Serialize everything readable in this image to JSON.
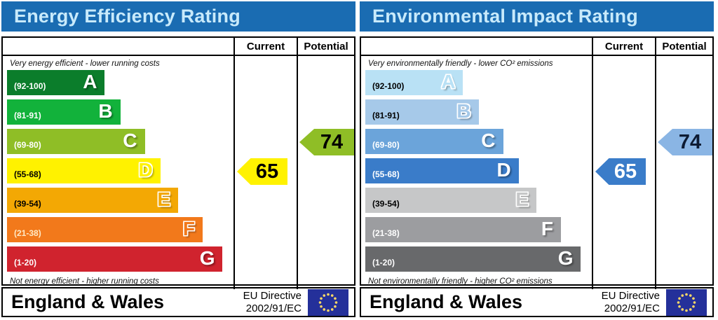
{
  "theme": {
    "header_bg": "#1a6cb2",
    "header_text": "#c8eafb",
    "border": "#000000",
    "eu_flag_bg": "#24309a",
    "eu_flag_stars": "#ffd966"
  },
  "panels": [
    {
      "title": "Energy Efficiency Rating",
      "columns": {
        "current": "Current",
        "potential": "Potential"
      },
      "top_caption": "Very energy efficient - lower running costs",
      "bottom_caption": "Not energy efficient - higher running costs",
      "bands": [
        {
          "letter": "A",
          "range": "(92-100)",
          "width": 44,
          "color": "#0b7d2b",
          "label_color": "#ffffff",
          "letter_style": "solid"
        },
        {
          "letter": "B",
          "range": "(81-91)",
          "width": 51,
          "color": "#12b23b",
          "label_color": "#ffffff",
          "letter_style": "solid"
        },
        {
          "letter": "C",
          "range": "(69-80)",
          "width": 62,
          "color": "#8fbe26",
          "label_color": "#ffffff",
          "letter_style": "solid"
        },
        {
          "letter": "D",
          "range": "(55-68)",
          "width": 69,
          "color": "#fff200",
          "label_color": "#000000",
          "letter_style": "hollow"
        },
        {
          "letter": "E",
          "range": "(39-54)",
          "width": 77,
          "color": "#f3a804",
          "label_color": "#000000",
          "letter_style": "hollow"
        },
        {
          "letter": "F",
          "range": "(21-38)",
          "width": 88,
          "color": "#f2791b",
          "label_color": "#ffe9c4",
          "letter_style": "hollow"
        },
        {
          "letter": "G",
          "range": "(1-20)",
          "width": 97,
          "color": "#d0232e",
          "label_color": "#ffffff",
          "letter_style": "solid"
        }
      ],
      "current": {
        "value": "65",
        "band": "D",
        "band_index": 3,
        "color": "#fff200",
        "text_color": "#000000"
      },
      "potential": {
        "value": "74",
        "band": "C",
        "band_index": 2,
        "color": "#8fbe26",
        "text_color": "#000000"
      },
      "footer": {
        "region": "England & Wales",
        "directive_line1": "EU Directive",
        "directive_line2": "2002/91/EC"
      }
    },
    {
      "title": "Environmental Impact Rating",
      "columns": {
        "current": "Current",
        "potential": "Potential"
      },
      "top_caption": "Very environmentally friendly - lower CO² emissions",
      "bottom_caption": "Not environmentally friendly - higher CO² emissions",
      "bands": [
        {
          "letter": "A",
          "range": "(92-100)",
          "width": 44,
          "color": "#b9e1f5",
          "label_color": "#000000",
          "letter_style": "hollow"
        },
        {
          "letter": "B",
          "range": "(81-91)",
          "width": 51,
          "color": "#a6c9e9",
          "label_color": "#000000",
          "letter_style": "hollow"
        },
        {
          "letter": "C",
          "range": "(69-80)",
          "width": 62,
          "color": "#6ba4da",
          "label_color": "#ffffff",
          "letter_style": "solid"
        },
        {
          "letter": "D",
          "range": "(55-68)",
          "width": 69,
          "color": "#3a7cc9",
          "label_color": "#ffffff",
          "letter_style": "solid"
        },
        {
          "letter": "E",
          "range": "(39-54)",
          "width": 77,
          "color": "#c6c7c8",
          "label_color": "#000000",
          "letter_style": "hollow"
        },
        {
          "letter": "F",
          "range": "(21-38)",
          "width": 88,
          "color": "#9c9da0",
          "label_color": "#ffffff",
          "letter_style": "solid"
        },
        {
          "letter": "G",
          "range": "(1-20)",
          "width": 97,
          "color": "#68696b",
          "label_color": "#ffffff",
          "letter_style": "solid"
        }
      ],
      "current": {
        "value": "65",
        "band": "D",
        "band_index": 3,
        "color": "#3a7cc9",
        "text_color": "#ffffff"
      },
      "potential": {
        "value": "74",
        "band": "C",
        "band_index": 2,
        "color": "#8ab5e4",
        "text_color": "#0d1b33"
      },
      "footer": {
        "region": "England & Wales",
        "directive_line1": "EU Directive",
        "directive_line2": "2002/91/EC"
      }
    }
  ],
  "chart_data": [
    {
      "type": "bar",
      "title": "Energy Efficiency Rating",
      "categories": [
        "A",
        "B",
        "C",
        "D",
        "E",
        "F",
        "G"
      ],
      "tick_ranges": [
        "92-100",
        "81-91",
        "69-80",
        "55-68",
        "39-54",
        "21-38",
        "1-20"
      ],
      "values": [
        44,
        51,
        62,
        69,
        77,
        88,
        97
      ],
      "series": [
        {
          "name": "Current",
          "value": 65,
          "band": "D"
        },
        {
          "name": "Potential",
          "value": 74,
          "band": "C"
        }
      ],
      "xlabel": "",
      "ylabel": "",
      "xlim": [
        1,
        100
      ],
      "legend_position": "top-right-columns",
      "grid": false
    },
    {
      "type": "bar",
      "title": "Environmental Impact Rating",
      "categories": [
        "A",
        "B",
        "C",
        "D",
        "E",
        "F",
        "G"
      ],
      "tick_ranges": [
        "92-100",
        "81-91",
        "69-80",
        "55-68",
        "39-54",
        "21-38",
        "1-20"
      ],
      "values": [
        44,
        51,
        62,
        69,
        77,
        88,
        97
      ],
      "series": [
        {
          "name": "Current",
          "value": 65,
          "band": "D"
        },
        {
          "name": "Potential",
          "value": 74,
          "band": "C"
        }
      ],
      "xlabel": "",
      "ylabel": "",
      "xlim": [
        1,
        100
      ],
      "legend_position": "top-right-columns",
      "grid": false
    }
  ]
}
